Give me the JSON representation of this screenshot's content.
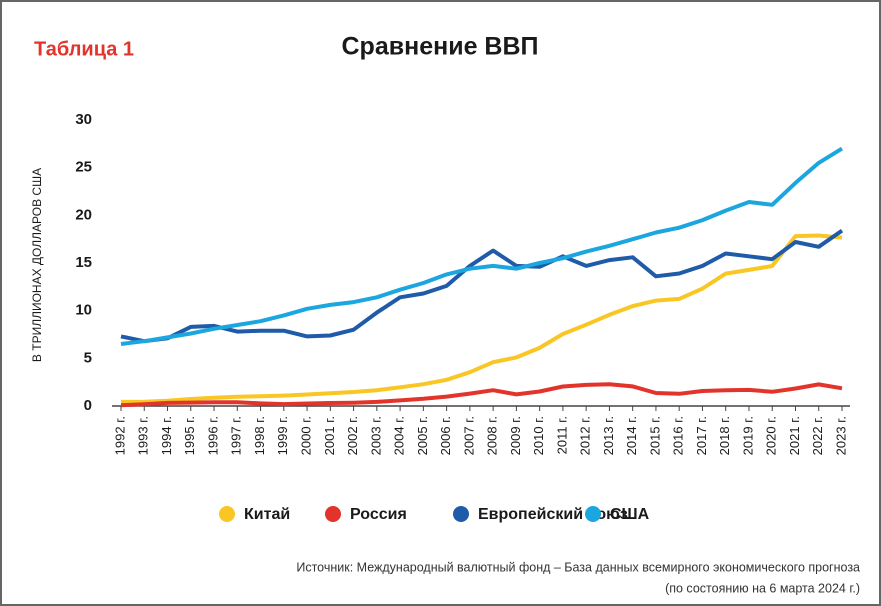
{
  "chart_data": {
    "type": "line",
    "label": "Таблица 1",
    "title": "Сравнение ВВП",
    "y_label": "В ТРИЛЛИОНАХ ДОЛЛАРОВ США",
    "categories": [
      "1992 г.",
      "1993 г.",
      "1994 г.",
      "1995 г.",
      "1996 г.",
      "1997 г.",
      "1998 г.",
      "1999 г.",
      "2000 г.",
      "2001 г.",
      "2002 г.",
      "2003 г.",
      "2004 г.",
      "2005 г.",
      "2006 г.",
      "2007 г.",
      "2008 г.",
      "2009 г.",
      "2010 г.",
      "2011 г.",
      "2012 г.",
      "2013 г.",
      "2014 г.",
      "2015 г.",
      "2016 г.",
      "2017 г.",
      "2018 г.",
      "2019 г.",
      "2020 г.",
      "2021 г.",
      "2022 г.",
      "2023 г."
    ],
    "series": [
      {
        "name": "Китай",
        "color": "#f9c623",
        "values": [
          0.43,
          0.44,
          0.56,
          0.73,
          0.86,
          0.96,
          1.03,
          1.09,
          1.21,
          1.34,
          1.47,
          1.66,
          1.96,
          2.29,
          2.75,
          3.55,
          4.59,
          5.1,
          6.09,
          7.55,
          8.53,
          9.57,
          10.48,
          11.06,
          11.23,
          12.31,
          13.89,
          14.28,
          14.69,
          17.82,
          17.88,
          17.66
        ]
      },
      {
        "name": "Россия",
        "color": "#e3342b",
        "values": [
          0.08,
          0.18,
          0.33,
          0.36,
          0.39,
          0.4,
          0.27,
          0.2,
          0.26,
          0.31,
          0.35,
          0.43,
          0.59,
          0.76,
          0.99,
          1.3,
          1.66,
          1.22,
          1.52,
          2.05,
          2.21,
          2.29,
          2.06,
          1.36,
          1.28,
          1.57,
          1.66,
          1.69,
          1.49,
          1.84,
          2.27,
          1.86
        ]
      },
      {
        "name": "Европейский союз",
        "color": "#1f5ba8",
        "values": [
          7.3,
          6.8,
          7.1,
          8.3,
          8.4,
          7.8,
          7.9,
          7.9,
          7.3,
          7.4,
          8.0,
          9.8,
          11.4,
          11.8,
          12.6,
          14.7,
          16.3,
          14.7,
          14.6,
          15.7,
          14.7,
          15.3,
          15.6,
          13.6,
          13.9,
          14.7,
          16.0,
          15.7,
          15.4,
          17.2,
          16.7,
          18.4
        ]
      },
      {
        "name": "США",
        "color": "#1ca6e0",
        "values": [
          6.5,
          6.8,
          7.2,
          7.6,
          8.1,
          8.5,
          8.9,
          9.5,
          10.2,
          10.6,
          10.9,
          11.4,
          12.2,
          12.9,
          13.8,
          14.4,
          14.7,
          14.4,
          15.0,
          15.5,
          16.2,
          16.8,
          17.5,
          18.2,
          18.7,
          19.5,
          20.5,
          21.4,
          21.1,
          23.4,
          25.5,
          27.0
        ]
      }
    ],
    "ylim": [
      0,
      30
    ],
    "yticks": [
      0,
      5,
      10,
      15,
      20,
      25,
      30
    ],
    "source": [
      "Источник: Международный валютный фонд – База данных всемирного экономического прогноза",
      "(по состоянию на 6 марта 2024 г.)"
    ]
  }
}
